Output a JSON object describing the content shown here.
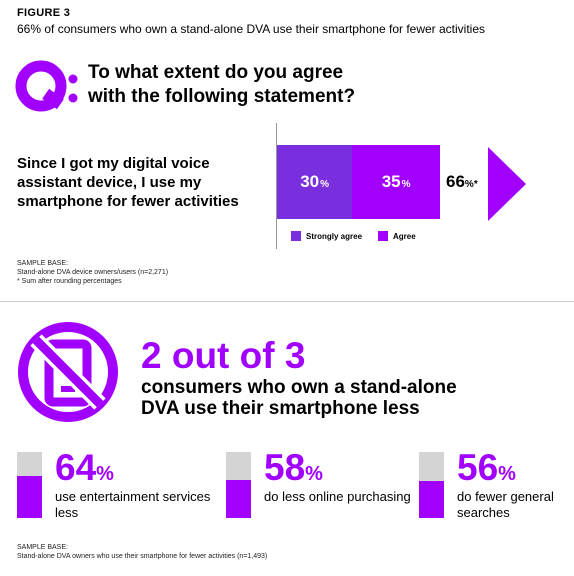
{
  "figure": {
    "label": "FIGURE 3",
    "subtitle": "66% of consumers who own a stand-alone DVA use their smartphone for fewer activities"
  },
  "question": {
    "line1": "To what extent do you agree",
    "line2": "with the following statement?"
  },
  "statement": "Since I got my digital voice assistant device, I use my smartphone for fewer activities",
  "chart_data": [
    {
      "type": "bar",
      "orientation": "horizontal-stacked",
      "categories": [
        "Since I got my digital voice assistant device, I use my smartphone for fewer activities"
      ],
      "series": [
        {
          "name": "Strongly agree",
          "values": [
            30
          ],
          "label": "30",
          "color": "#7a2fde"
        },
        {
          "name": "Agree",
          "values": [
            35
          ],
          "label": "35",
          "color": "#a100ff"
        }
      ],
      "total": {
        "value": 66,
        "label": "66",
        "suffix": "%*"
      },
      "legend": "bottom"
    },
    {
      "type": "bar",
      "orientation": "vertical-fill",
      "items": [
        {
          "value": 64,
          "label": "64",
          "text": "use entertainment services less"
        },
        {
          "value": 58,
          "label": "58",
          "text": "do less online purchasing"
        },
        {
          "value": 56,
          "label": "56",
          "text": "do fewer general searches"
        }
      ]
    }
  ],
  "notes1": {
    "line1": "SAMPLE BASE:",
    "line2": "Stand-alone DVA device owners/users (n=2,271)",
    "line3": "* Sum after rounding percentages"
  },
  "headline": {
    "number": "2 out of 3",
    "line1": "consumers who own a stand-alone",
    "line2": "DVA use their smartphone less"
  },
  "notes2": {
    "line1": "SAMPLE BASE:",
    "line2": "Stand-alone DVA owners who use their smartphone for fewer activities (n=1,493)"
  },
  "pct_symbol": "%",
  "icons": {
    "q": "q-logo-icon",
    "phone": "phone-prohibited-icon",
    "arrow": "arrow-right-icon"
  },
  "colors": {
    "accent": "#a100ff",
    "strongly_agree": "#7a2fde",
    "empty": "#d4d4d4"
  }
}
